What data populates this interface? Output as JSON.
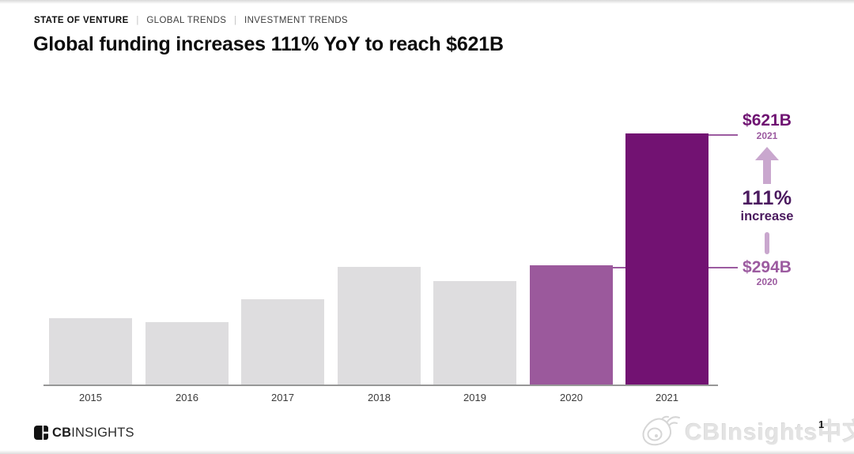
{
  "page": {
    "breadcrumb": {
      "primary": "STATE OF VENTURE",
      "separator": "|",
      "items": [
        "GLOBAL TRENDS",
        "INVESTMENT TRENDS"
      ]
    },
    "title": "Global funding increases 111% YoY to reach $621B",
    "page_number": "1"
  },
  "chart_data": {
    "type": "bar",
    "title": "Global funding increases 111% YoY to reach $621B",
    "categories": [
      "2015",
      "2016",
      "2017",
      "2018",
      "2019",
      "2020",
      "2021"
    ],
    "values": [
      165,
      155,
      210,
      290,
      255,
      294,
      621
    ],
    "labeled_values": {
      "2020": "$294B",
      "2021": "$621B"
    },
    "unit": "$B",
    "xlabel": "",
    "ylabel": "",
    "ylim": [
      0,
      650
    ],
    "grid": false,
    "legend": "none",
    "bar_colors": {
      "default": "#dedddf",
      "2020": "#9b599c",
      "2021": "#721272"
    },
    "annotations": {
      "top": {
        "value": "$621B",
        "year": "2021"
      },
      "change": {
        "pct": "111%",
        "label": "increase",
        "arrow": "up"
      },
      "bottom": {
        "value": "$294B",
        "year": "2020"
      }
    }
  },
  "annotations": {
    "top": {
      "value": "$621B",
      "year": "2021"
    },
    "change": {
      "pct": "111%",
      "label": "increase"
    },
    "bottom": {
      "value": "$294B",
      "year": "2020"
    }
  },
  "footer": {
    "logo_bold": "CB",
    "logo_light": "INSIGHTS"
  },
  "watermark": {
    "text": "CBInsights中文"
  },
  "colors": {
    "bar_gray": "#dedddf",
    "bar_2020": "#9b599c",
    "bar_2021": "#721272",
    "label_dark_purple": "#6f1472",
    "label_medium_purple": "#9c5ba0",
    "change_text": "#4b1a5f",
    "arrow_light_purple": "#c9a7ce",
    "axis": "#979797"
  }
}
